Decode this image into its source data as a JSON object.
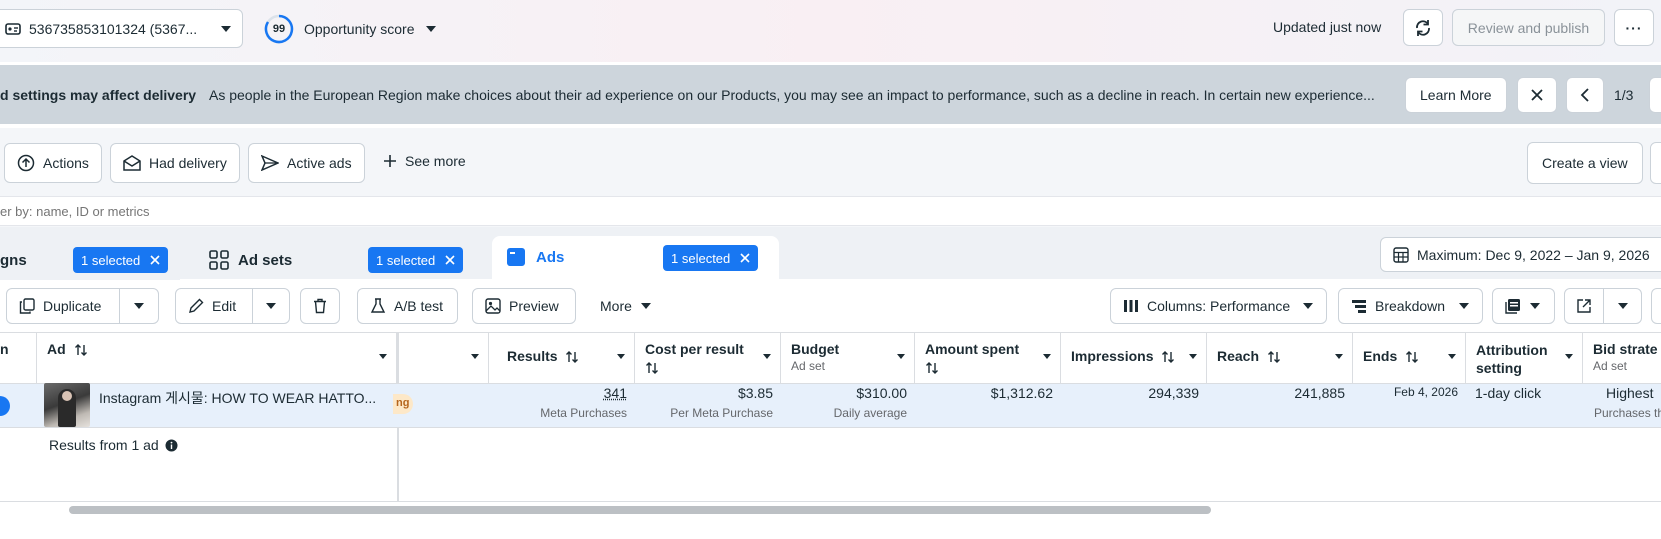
{
  "topbar": {
    "account_label": "536735853101324 (5367...",
    "score_value": "99",
    "score_label": "Opportunity score",
    "updated_text": "Updated just now",
    "review_publish_label": "Review and publish",
    "more_glyph": "···"
  },
  "notice": {
    "title": "d settings may affect delivery",
    "message": "As people in the European Region make choices about their ad experience on our Products, you may see an impact to performance, such as a decline in reach. In certain new experience...",
    "learn_more_label": "Learn More",
    "pager": "1/3"
  },
  "filters": {
    "actions_label": "Actions",
    "had_delivery_label": "Had delivery",
    "active_ads_label": "Active ads",
    "see_more_label": "See more",
    "create_view_label": "Create a view"
  },
  "search": {
    "placeholder": "er by: name, ID or metrics"
  },
  "tabs": {
    "campaigns_label": "gns",
    "campaigns_selected": "1 selected",
    "adsets_label": "Ad sets",
    "adsets_selected": "1 selected",
    "ads_label": "Ads",
    "ads_selected": "1 selected"
  },
  "date_range": "Maximum: Dec 9, 2022 – Jan 9, 2026",
  "toolbar": {
    "duplicate_label": "Duplicate",
    "edit_label": "Edit",
    "ab_test_label": "A/B test",
    "preview_label": "Preview",
    "more_label": "More",
    "columns_label": "Columns: Performance",
    "breakdown_label": "Breakdown"
  },
  "table": {
    "headers": {
      "left_partial": "n",
      "ad": "Ad",
      "results": "Results",
      "cost_per_result": "Cost per result",
      "budget": "Budget",
      "budget_sub": "Ad set",
      "amount_spent": "Amount spent",
      "impressions": "Impressions",
      "reach": "Reach",
      "ends": "Ends",
      "attribution": "Attribution setting",
      "bid_strategy": "Bid strate",
      "bid_strategy_sub": "Ad set"
    },
    "row": {
      "ad_name": "Instagram 게시물: HOW TO WEAR HATTO...",
      "badge_partial": "ng",
      "results": "341",
      "results_sub": "Meta Purchases",
      "cost_per_result": "$3.85",
      "cost_per_result_sub": "Per Meta Purchase",
      "budget": "$310.00",
      "budget_sub": "Daily average",
      "amount_spent": "$1,312.62",
      "impressions": "294,339",
      "reach": "241,885",
      "ends": "Feb 4, 2026",
      "attribution": "1-day click",
      "bid_strategy": "Highest",
      "bid_strategy_sub": "Purchases th"
    },
    "results_from": "Results from 1 ad"
  },
  "colors": {
    "accent": "#1877f2",
    "notice_bg": "#cdd5dc",
    "selected_row": "#e7f0fb"
  }
}
